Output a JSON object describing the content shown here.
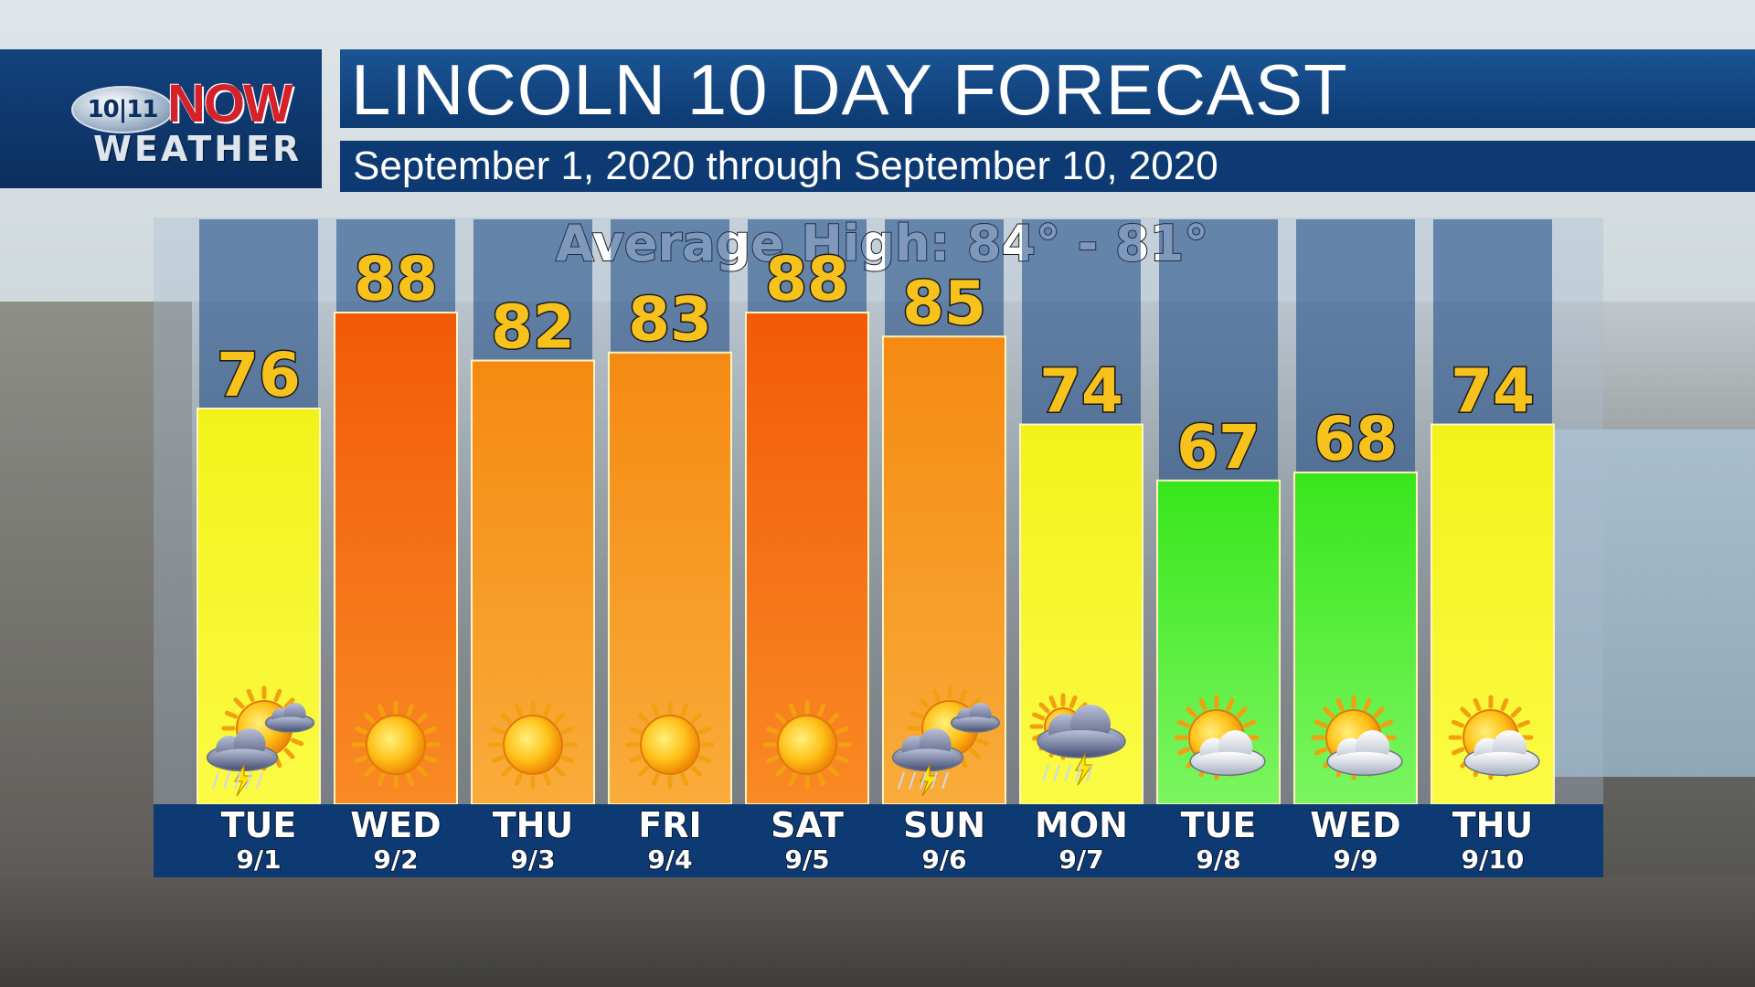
{
  "header": {
    "logo_number": "10|11",
    "logo_now": "NOW",
    "logo_weather": "WEATHER",
    "title": "LINCOLN 10 DAY FORECAST",
    "subtitle": "September 1, 2020 through September 10, 2020"
  },
  "chart_data": {
    "type": "bar",
    "title": "Average High: 84° - 81°",
    "categories": [
      "TUE 9/1",
      "WED 9/2",
      "THU 9/3",
      "FRI 9/4",
      "SAT 9/5",
      "SUN 9/6",
      "MON 9/7",
      "TUE 9/8",
      "WED 9/9",
      "THU 9/10"
    ],
    "days": [
      "TUE",
      "WED",
      "THU",
      "FRI",
      "SAT",
      "SUN",
      "MON",
      "TUE",
      "WED",
      "THU"
    ],
    "dates": [
      "9/1",
      "9/2",
      "9/3",
      "9/4",
      "9/5",
      "9/6",
      "9/7",
      "9/8",
      "9/9",
      "9/10"
    ],
    "values": [
      76,
      88,
      82,
      83,
      88,
      85,
      74,
      67,
      68,
      74
    ],
    "conditions": [
      "sun-storm-icon",
      "sun-icon",
      "sun-icon",
      "sun-icon",
      "sun-icon",
      "sun-storm-icon",
      "storm-rain-icon",
      "partly-cloudy-icon",
      "partly-cloudy-icon",
      "partly-cloudy-icon"
    ],
    "colors": {
      "hot": "#f4640c",
      "warm": "#f6a21e",
      "mild": "#f4f41a",
      "cool": "#3ee81e",
      "value_text": "#f7c21c",
      "axis_bar": "#0d3a72"
    },
    "bar_colors": [
      "mild",
      "hot",
      "warm",
      "warm",
      "hot",
      "warm",
      "mild",
      "cool",
      "cool",
      "mild"
    ]
  }
}
